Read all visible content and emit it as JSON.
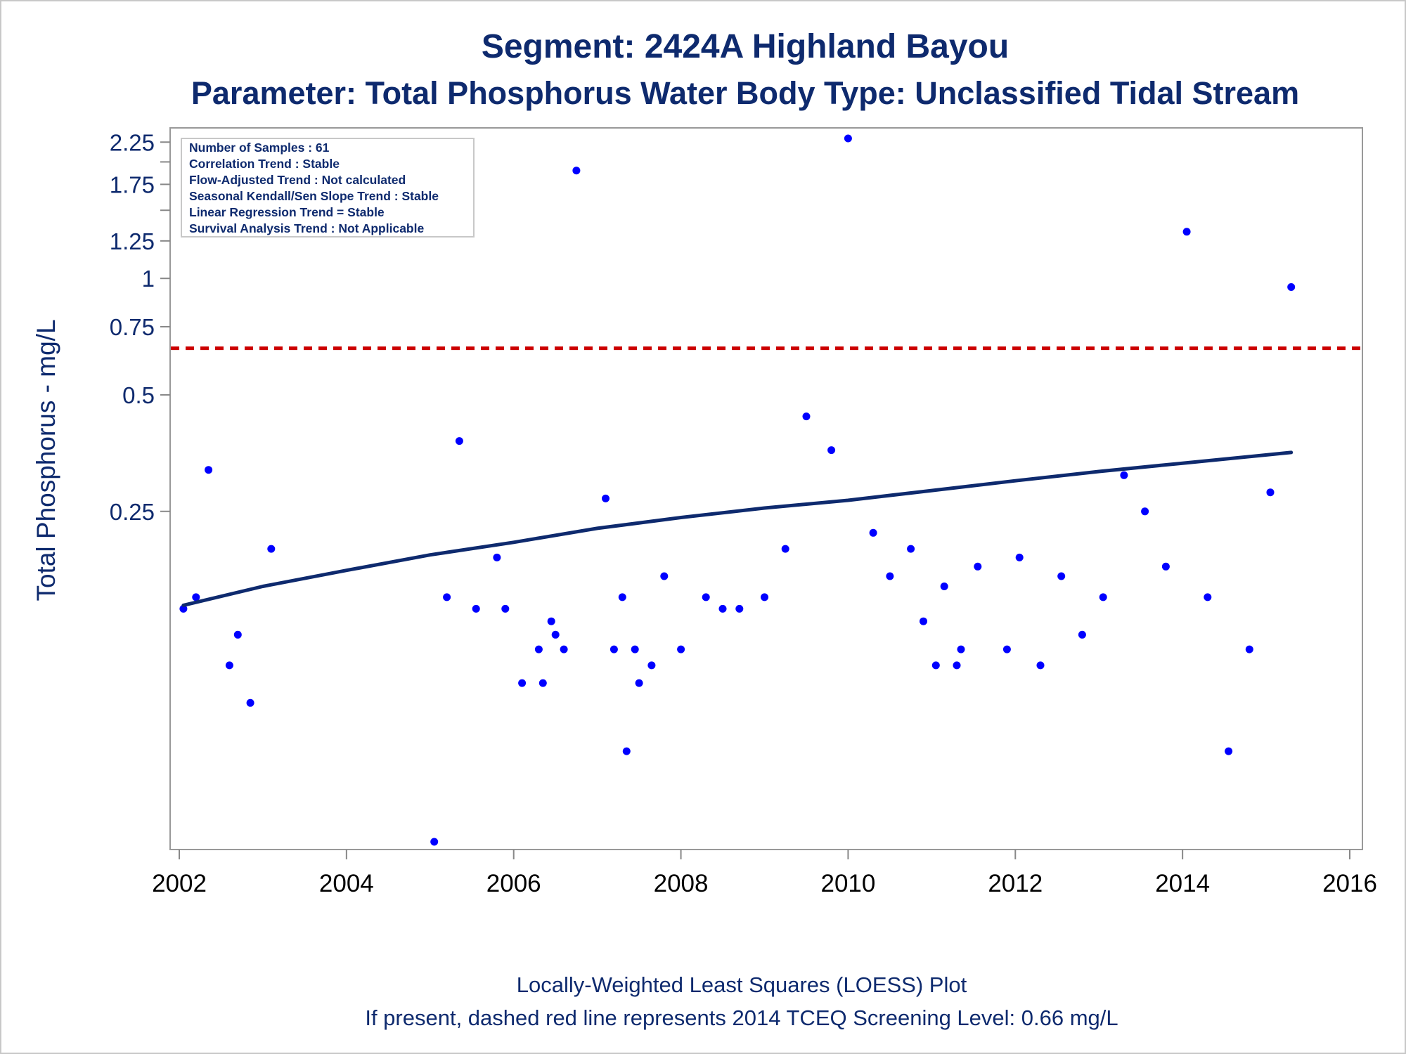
{
  "chart_data": {
    "type": "scatter",
    "title": "Segment: 2424A  Highland Bayou",
    "subtitle": "Parameter: Total Phosphorus   Water Body Type: Unclassified Tidal Stream",
    "ylabel": "Total Phosphorus - mg/L",
    "xlabel": "",
    "y_scale": "log",
    "xlim": [
      2002,
      2016
    ],
    "ylim": [
      0.035,
      2.3
    ],
    "x_ticks": [
      "2002",
      "2004",
      "2006",
      "2008",
      "2010",
      "2012",
      "2014",
      "2016"
    ],
    "y_ticks": [
      "0.25",
      "0.5",
      "0.75",
      "1",
      "1.25",
      "1.75",
      "2.25"
    ],
    "y_minor_ticks": [
      1.5,
      2.0
    ],
    "stats_box": [
      "Number of Samples : 61",
      "Correlation Trend : Stable",
      "Flow-Adjusted Trend : Not calculated",
      "Seasonal Kendall/Sen Slope Trend : Stable",
      "Linear Regression Trend = Stable",
      "Survival Analysis Trend : Not Applicable"
    ],
    "screening_level": {
      "value": 0.66,
      "color": "#cc0000",
      "style": "dashed"
    },
    "series": [
      {
        "name": "Samples",
        "kind": "points",
        "color": "#0000ff",
        "points": [
          [
            2002.05,
            0.14
          ],
          [
            2002.2,
            0.15
          ],
          [
            2002.35,
            0.32
          ],
          [
            2002.6,
            0.1
          ],
          [
            2002.7,
            0.12
          ],
          [
            2002.85,
            0.08
          ],
          [
            2003.1,
            0.2
          ],
          [
            2005.05,
            0.035
          ],
          [
            2005.2,
            0.15
          ],
          [
            2005.35,
            0.38
          ],
          [
            2005.55,
            0.14
          ],
          [
            2005.8,
            0.19
          ],
          [
            2005.9,
            0.14
          ],
          [
            2006.1,
            0.09
          ],
          [
            2006.3,
            0.11
          ],
          [
            2006.35,
            0.09
          ],
          [
            2006.45,
            0.13
          ],
          [
            2006.5,
            0.12
          ],
          [
            2006.6,
            0.11
          ],
          [
            2006.75,
            1.9
          ],
          [
            2007.1,
            0.27
          ],
          [
            2007.2,
            0.11
          ],
          [
            2007.3,
            0.15
          ],
          [
            2007.35,
            0.06
          ],
          [
            2007.45,
            0.11
          ],
          [
            2007.5,
            0.09
          ],
          [
            2007.65,
            0.1
          ],
          [
            2007.8,
            0.17
          ],
          [
            2008.0,
            0.11
          ],
          [
            2008.3,
            0.15
          ],
          [
            2008.5,
            0.14
          ],
          [
            2008.7,
            0.14
          ],
          [
            2009.0,
            0.15
          ],
          [
            2009.25,
            0.2
          ],
          [
            2009.5,
            0.44
          ],
          [
            2009.8,
            0.36
          ],
          [
            2010.0,
            2.3
          ],
          [
            2010.3,
            0.22
          ],
          [
            2010.5,
            0.17
          ],
          [
            2010.75,
            0.2
          ],
          [
            2010.9,
            0.13
          ],
          [
            2011.05,
            0.1
          ],
          [
            2011.15,
            0.16
          ],
          [
            2011.3,
            0.1
          ],
          [
            2011.35,
            0.11
          ],
          [
            2011.55,
            0.18
          ],
          [
            2011.9,
            0.11
          ],
          [
            2012.05,
            0.19
          ],
          [
            2012.3,
            0.1
          ],
          [
            2012.55,
            0.17
          ],
          [
            2012.8,
            0.12
          ],
          [
            2013.05,
            0.15
          ],
          [
            2013.3,
            0.31
          ],
          [
            2013.55,
            0.25
          ],
          [
            2013.8,
            0.18
          ],
          [
            2014.05,
            1.32
          ],
          [
            2014.3,
            0.15
          ],
          [
            2014.55,
            0.06
          ],
          [
            2014.8,
            0.11
          ],
          [
            2015.05,
            0.28
          ],
          [
            2015.3,
            0.95
          ]
        ]
      },
      {
        "name": "LOESS",
        "kind": "line",
        "color": "#0e2a6e",
        "points": [
          [
            2002.05,
            0.143
          ],
          [
            2003.0,
            0.16
          ],
          [
            2004.0,
            0.176
          ],
          [
            2005.0,
            0.193
          ],
          [
            2006.0,
            0.208
          ],
          [
            2007.0,
            0.226
          ],
          [
            2008.0,
            0.241
          ],
          [
            2009.0,
            0.255
          ],
          [
            2010.0,
            0.267
          ],
          [
            2011.0,
            0.283
          ],
          [
            2012.0,
            0.3
          ],
          [
            2013.0,
            0.317
          ],
          [
            2014.0,
            0.333
          ],
          [
            2015.3,
            0.355
          ]
        ]
      }
    ],
    "footnotes": [
      "Locally-Weighted Least Squares (LOESS) Plot",
      "If present, dashed red line represents 2014 TCEQ Screening Level: 0.66 mg/L"
    ]
  }
}
